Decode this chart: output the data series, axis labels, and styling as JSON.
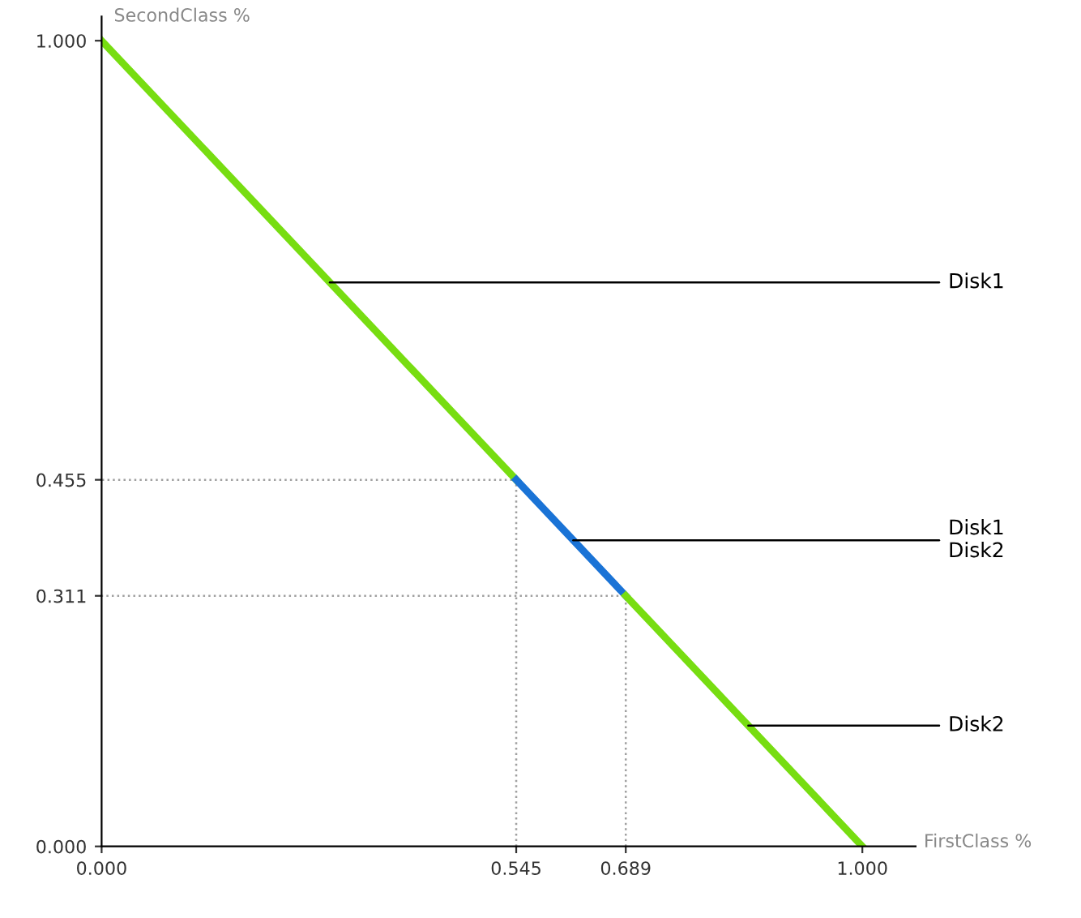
{
  "chart_data": {
    "type": "line",
    "xlabel": "FirstClass %",
    "ylabel": "SecondClass %",
    "xlim": [
      0,
      1.07
    ],
    "ylim": [
      0,
      1.03
    ],
    "xticks": [
      {
        "value": 0,
        "label": "0.000"
      },
      {
        "value": 0.545,
        "label": "0.545"
      },
      {
        "value": 0.689,
        "label": "0.689"
      },
      {
        "value": 1,
        "label": "1.000"
      }
    ],
    "yticks": [
      {
        "value": 0,
        "label": "0.000"
      },
      {
        "value": 0.311,
        "label": "0.311"
      },
      {
        "value": 0.455,
        "label": "0.455"
      },
      {
        "value": 1,
        "label": "1.000"
      }
    ],
    "grid": false,
    "marker": "none",
    "series": [
      {
        "line_style": "dotted",
        "color": "#a0a0a0",
        "x": [
          0.545,
          0.545,
          0
        ],
        "values": [
          0,
          0.455,
          0.455
        ]
      },
      {
        "line_style": "dotted",
        "color": "#a0a0a0",
        "x": [
          0.689,
          0.689,
          0
        ],
        "values": [
          0,
          0.311,
          0.311
        ]
      },
      {
        "line_style": "solid",
        "color": "#77dd11",
        "x": [
          0,
          0.545
        ],
        "values": [
          1,
          0.455
        ]
      },
      {
        "line_style": "solid",
        "color": "#1a73d6",
        "x": [
          0.545,
          0.689
        ],
        "values": [
          0.455,
          0.311
        ]
      },
      {
        "line_style": "solid",
        "color": "#77dd11",
        "x": [
          0.689,
          1
        ],
        "values": [
          0.311,
          0
        ]
      }
    ],
    "annotations": [
      {
        "text": "Disk1",
        "x": 0.3,
        "y": 0.7
      },
      {
        "text": "Disk1\nDisk2",
        "x": 0.62,
        "y": 0.38
      },
      {
        "text": "Disk2",
        "x": 0.85,
        "y": 0.15
      }
    ]
  }
}
